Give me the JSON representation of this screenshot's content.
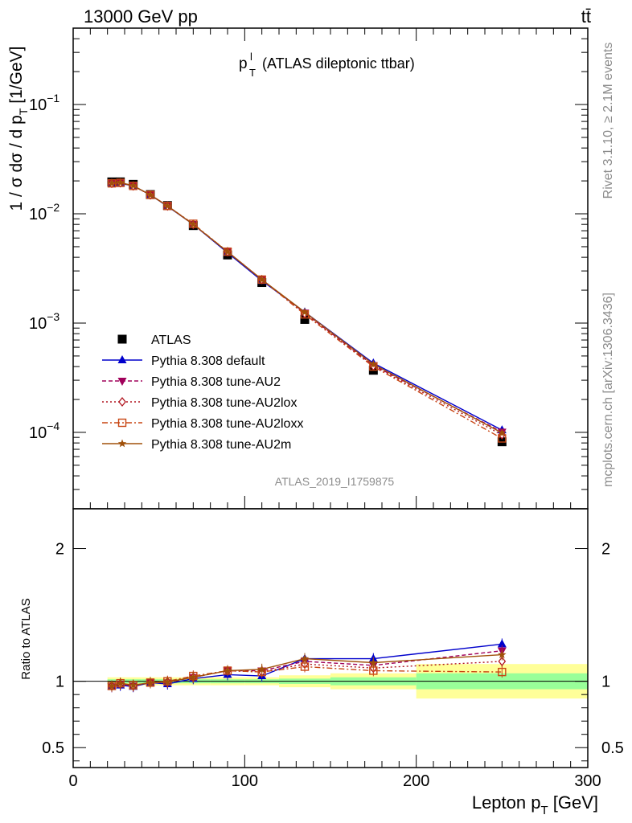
{
  "header": {
    "left": "13000 GeV pp",
    "right": "tt̄"
  },
  "side_labels": {
    "rivet": "Rivet 3.1.10, ≥ 2.1M events",
    "mcplots": "mcplots.cern.ch [arXiv:1306.3436]"
  },
  "analysis_id": "ATLAS_2019_I1759875",
  "colors": {
    "data": "#000000",
    "default": "#0000cc",
    "au2": "#a0005a",
    "au2lox": "#b0141e",
    "au2loxx": "#c84614",
    "au2m": "#a0500a",
    "band_inner": "#99ff99",
    "band_outer": "#ffff99"
  },
  "chart_data": [
    {
      "type": "line",
      "title_main": "p",
      "title_sup": "l",
      "title_sub": "T",
      "title_rest": "(ATLAS dileptonic ttbar)",
      "ylabel": "1 / σ  dσ / d p_T [1/GeV]",
      "yscale": "log",
      "xlim": [
        0,
        300
      ],
      "ylim": [
        2e-05,
        0.5
      ],
      "y_tick_labels": [
        "10^-4",
        "10^-3",
        "10^-2",
        "10^-1"
      ],
      "x": [
        22.5,
        27.5,
        35,
        45,
        55,
        70,
        90,
        110,
        135,
        175,
        250
      ],
      "series": [
        {
          "name": "ATLAS",
          "key": "data",
          "marker": "square",
          "values": [
            0.0196,
            0.0196,
            0.0186,
            0.015,
            0.0119,
            0.0078,
            0.0042,
            0.00235,
            0.00108,
            0.00037,
            8.2e-05
          ]
        },
        {
          "name": "Pythia 8.308 default",
          "key": "default",
          "marker": "triangle-up",
          "values": [
            0.019,
            0.019,
            0.018,
            0.0149,
            0.0117,
            0.008,
            0.0044,
            0.00244,
            0.00126,
            0.00043,
            0.000105
          ]
        },
        {
          "name": "Pythia 8.308 tune-AU2",
          "key": "au2",
          "marker": "triangle-down",
          "values": [
            0.019,
            0.0193,
            0.018,
            0.0149,
            0.0118,
            0.008,
            0.0045,
            0.0025,
            0.00124,
            0.00041,
            0.000101
          ]
        },
        {
          "name": "Pythia 8.308 tune-AU2lox",
          "key": "au2lox",
          "marker": "diamond",
          "values": [
            0.019,
            0.0192,
            0.018,
            0.0149,
            0.0118,
            0.008,
            0.0045,
            0.0025,
            0.00122,
            0.000405,
            9.5e-05
          ]
        },
        {
          "name": "Pythia 8.308 tune-AU2loxx",
          "key": "au2loxx",
          "marker": "open-square",
          "values": [
            0.019,
            0.0192,
            0.018,
            0.0149,
            0.0118,
            0.0081,
            0.0045,
            0.0025,
            0.0012,
            0.0004,
            8.8e-05
          ]
        },
        {
          "name": "Pythia 8.308 tune-AU2m",
          "key": "au2m",
          "marker": "star",
          "values": [
            0.019,
            0.0193,
            0.0181,
            0.0149,
            0.0118,
            0.008,
            0.0045,
            0.0025,
            0.00126,
            0.00042,
            9.9e-05
          ]
        }
      ]
    },
    {
      "type": "line",
      "ylabel": "Ratio to ATLAS",
      "xlabel": "Lepton p_T [GeV]",
      "xlim": [
        0,
        300
      ],
      "ylim": [
        0.35,
        2.3
      ],
      "y_tick_labels": [
        "0.5",
        "1",
        "2"
      ],
      "x_tick_labels": [
        "0",
        "100",
        "200",
        "300"
      ],
      "band_bins": [
        [
          20,
          25
        ],
        [
          25,
          30
        ],
        [
          30,
          40
        ],
        [
          40,
          50
        ],
        [
          50,
          60
        ],
        [
          60,
          80
        ],
        [
          80,
          100
        ],
        [
          100,
          120
        ],
        [
          120,
          150
        ],
        [
          150,
          200
        ],
        [
          200,
          300
        ]
      ],
      "band_inner": [
        0.015,
        0.015,
        0.015,
        0.015,
        0.015,
        0.015,
        0.015,
        0.015,
        0.02,
        0.03,
        0.06
      ],
      "band_outer": [
        0.03,
        0.03,
        0.03,
        0.03,
        0.03,
        0.03,
        0.03,
        0.03,
        0.045,
        0.06,
        0.13
      ],
      "series": [
        {
          "name": "Pythia 8.308 default",
          "key": "default",
          "values": [
            0.96,
            0.97,
            0.96,
            0.99,
            0.98,
            1.02,
            1.05,
            1.04,
            1.17,
            1.17,
            1.28
          ]
        },
        {
          "name": "Pythia 8.308 tune-AU2",
          "key": "au2",
          "values": [
            0.96,
            0.98,
            0.965,
            0.99,
            0.99,
            1.03,
            1.08,
            1.08,
            1.15,
            1.12,
            1.23
          ]
        },
        {
          "name": "Pythia 8.308 tune-AU2lox",
          "key": "au2lox",
          "values": [
            0.965,
            0.98,
            0.965,
            0.99,
            0.995,
            1.03,
            1.08,
            1.07,
            1.13,
            1.1,
            1.15
          ]
        },
        {
          "name": "Pythia 8.308 tune-AU2loxx",
          "key": "au2loxx",
          "values": [
            0.965,
            0.985,
            0.97,
            0.99,
            1.0,
            1.04,
            1.08,
            1.07,
            1.11,
            1.08,
            1.07
          ]
        },
        {
          "name": "Pythia 8.308 tune-AU2m",
          "key": "au2m",
          "values": [
            0.965,
            0.985,
            0.97,
            0.99,
            0.995,
            1.03,
            1.08,
            1.09,
            1.17,
            1.14,
            1.2
          ]
        }
      ]
    }
  ]
}
